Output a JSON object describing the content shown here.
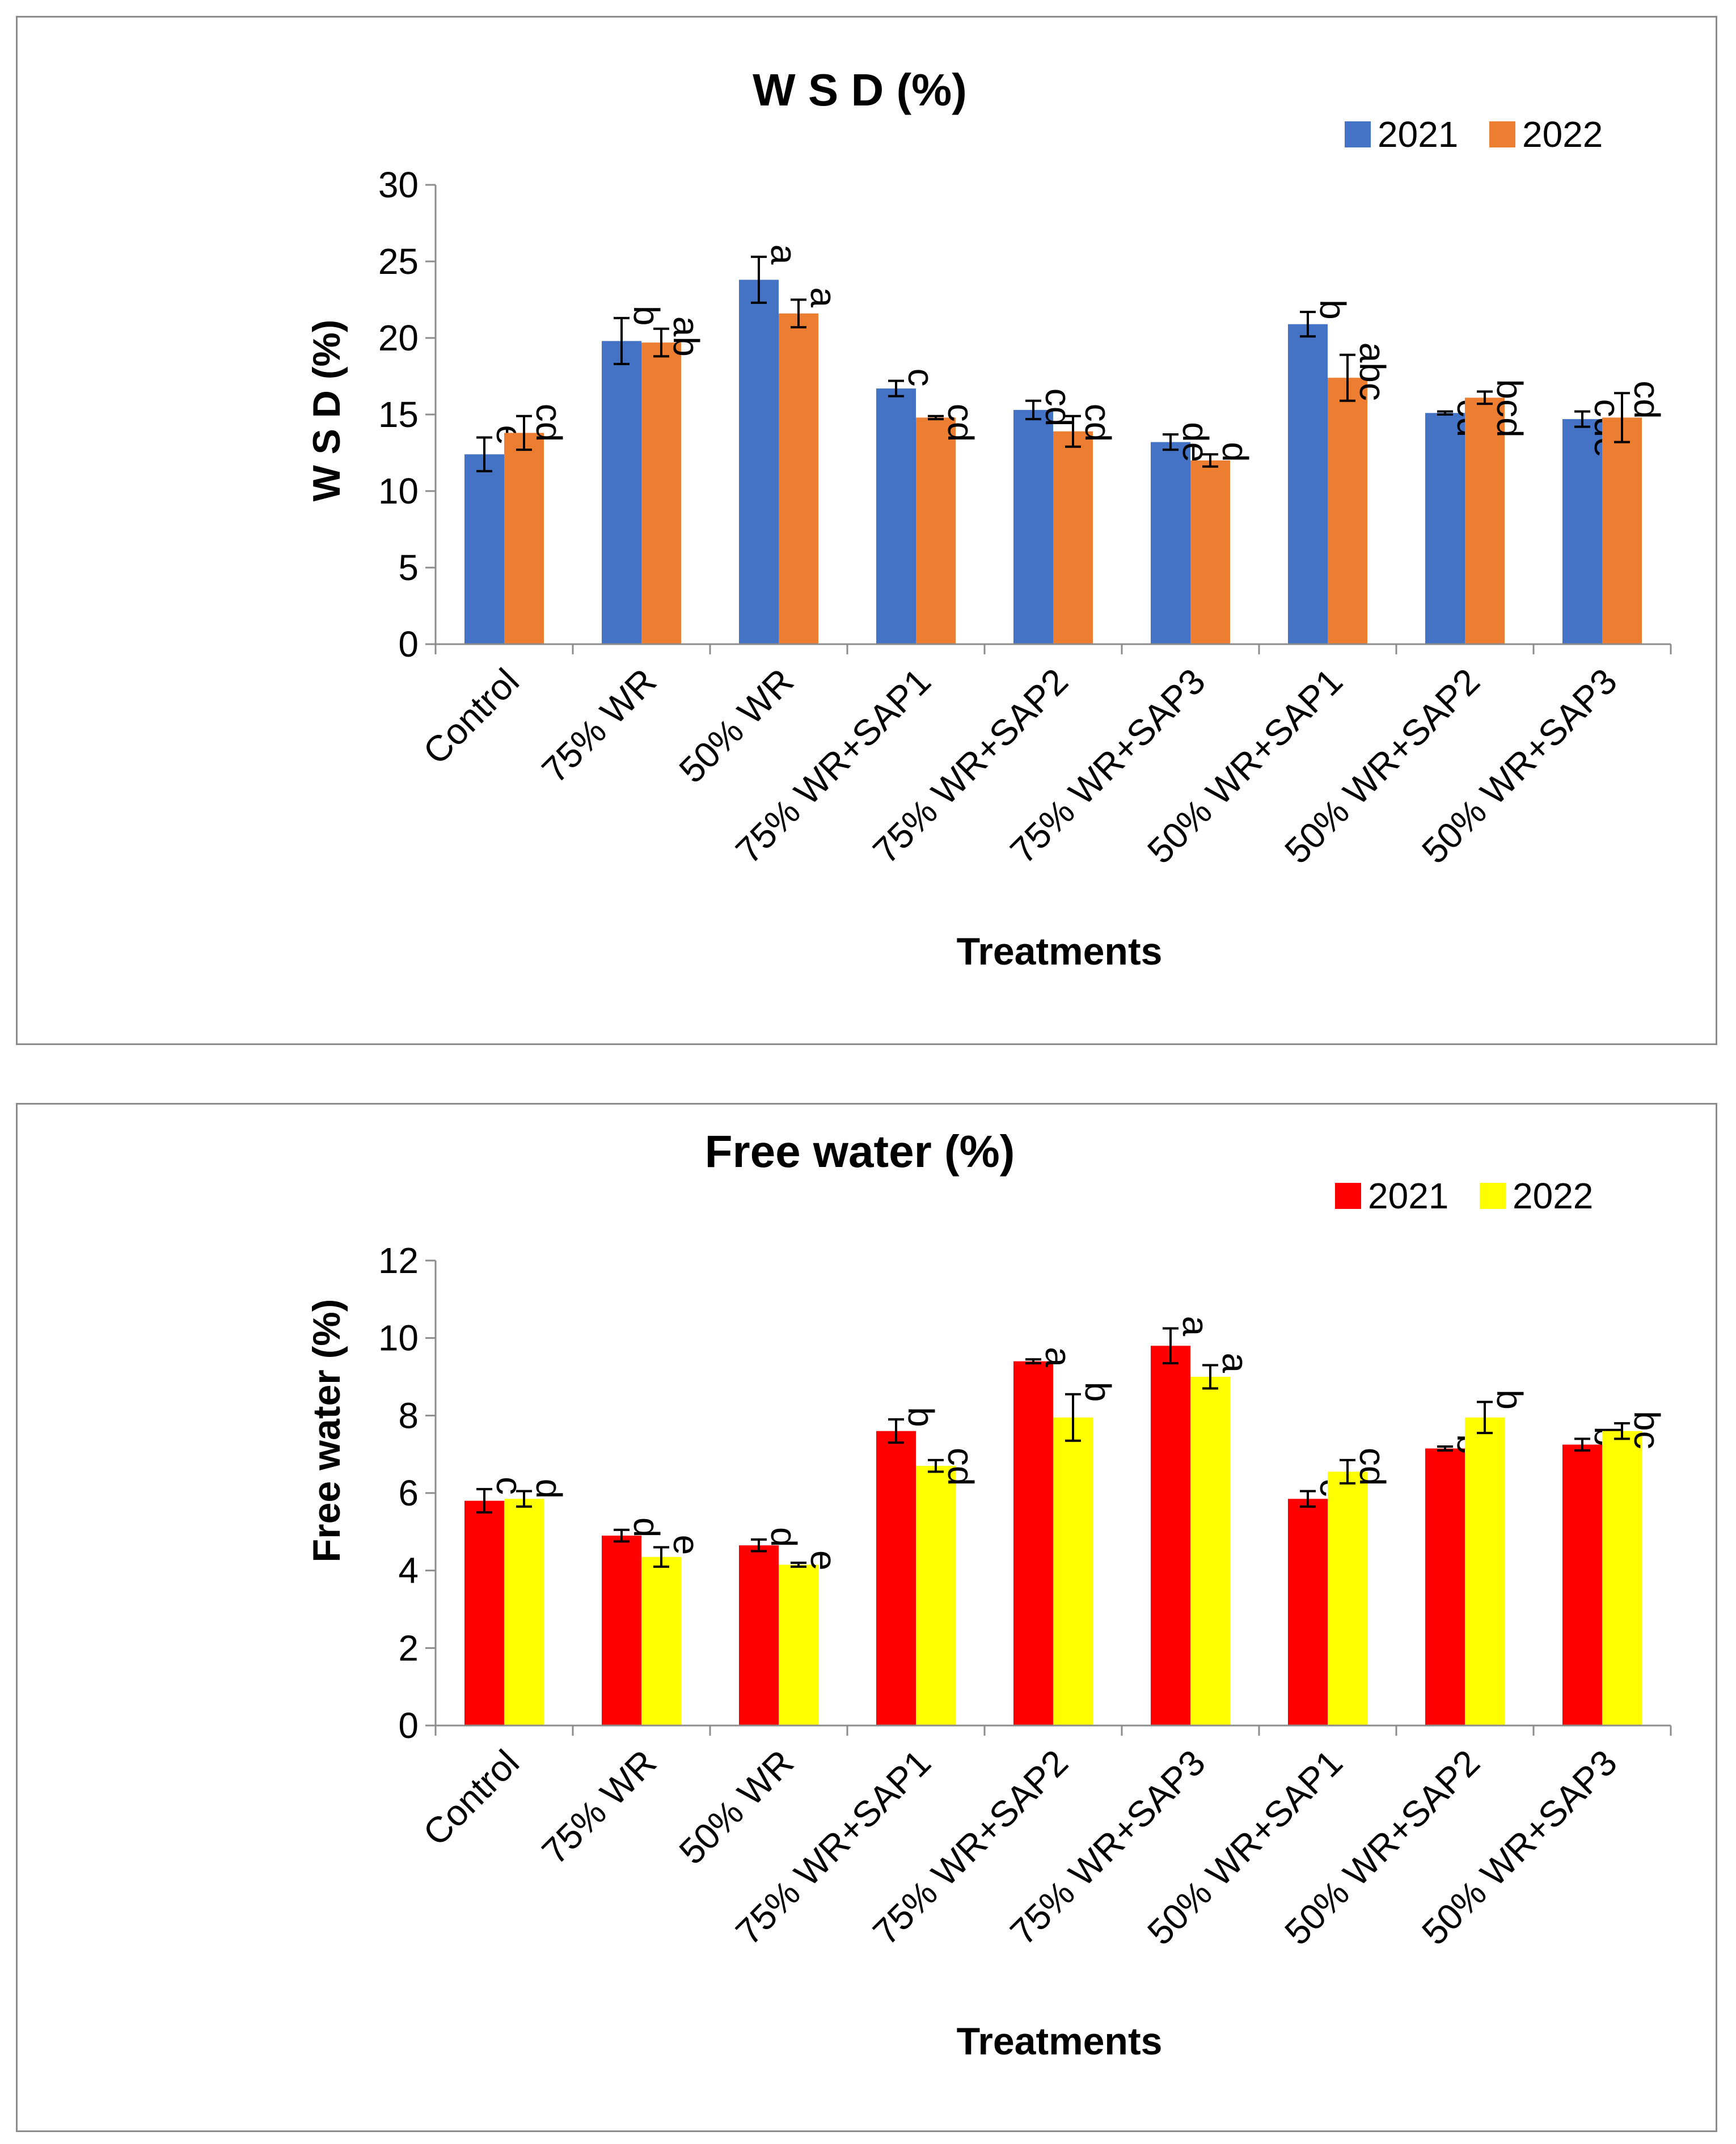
{
  "chart_data": [
    {
      "type": "bar",
      "title": "W S D (%)",
      "xlabel": "Treatments",
      "ylabel": "W S D (%)",
      "ylim": [
        0,
        30
      ],
      "yticks": [
        0,
        5,
        10,
        15,
        20,
        25,
        30
      ],
      "legend_position": "top-right",
      "categories": [
        "Control",
        "75% WR",
        "50% WR",
        "75% WR+SAP1",
        "75% WR+SAP2",
        "75% WR+SAP3",
        "50% WR+SAP1",
        "50% WR+SAP2",
        "50% WR+SAP3"
      ],
      "series": [
        {
          "name": "2021",
          "color": "#4472C4",
          "values": [
            12.4,
            19.8,
            23.8,
            16.7,
            15.3,
            13.2,
            20.9,
            15.1,
            14.7
          ],
          "errors": [
            1.1,
            1.5,
            1.5,
            0.5,
            0.6,
            0.5,
            0.8,
            0.1,
            0.5
          ],
          "labels": [
            "e",
            "b",
            "a",
            "c",
            "cd",
            "de",
            "b",
            "cd",
            "cde"
          ]
        },
        {
          "name": "2022",
          "color": "#ED7D31",
          "values": [
            13.8,
            19.7,
            21.6,
            14.8,
            13.9,
            12.0,
            17.4,
            16.1,
            14.8
          ],
          "errors": [
            1.1,
            0.9,
            0.9,
            0.1,
            1.0,
            0.4,
            1.5,
            0.4,
            1.6
          ],
          "labels": [
            "cd",
            "ab",
            "a",
            "cd",
            "cd",
            "d",
            "abc",
            "bcd",
            "cd"
          ]
        }
      ]
    },
    {
      "type": "bar",
      "title": "Free water (%)",
      "xlabel": "Treatments",
      "ylabel": "Free water (%)",
      "ylim": [
        0,
        12
      ],
      "yticks": [
        0,
        2,
        4,
        6,
        8,
        10,
        12
      ],
      "legend_position": "top-right",
      "categories": [
        "Control",
        "75% WR",
        "50% WR",
        "75% WR+SAP1",
        "75% WR+SAP2",
        "75% WR+SAP3",
        "50% WR+SAP1",
        "50% WR+SAP2",
        "50% WR+SAP3"
      ],
      "series": [
        {
          "name": "2021",
          "color": "#FF0000",
          "values": [
            5.8,
            4.9,
            4.65,
            7.6,
            9.4,
            9.8,
            5.85,
            7.15,
            7.25
          ],
          "errors": [
            0.3,
            0.15,
            0.15,
            0.3,
            0.05,
            0.45,
            0.2,
            0.05,
            0.15
          ],
          "labels": [
            "c",
            "d",
            "d",
            "b",
            "a",
            "a",
            "c",
            "b",
            "b"
          ]
        },
        {
          "name": "2022",
          "color": "#FFFF00",
          "values": [
            5.85,
            4.35,
            4.15,
            6.7,
            7.95,
            9.0,
            6.55,
            7.95,
            7.6
          ],
          "errors": [
            0.2,
            0.25,
            0.05,
            0.15,
            0.6,
            0.3,
            0.3,
            0.4,
            0.2
          ],
          "labels": [
            "d",
            "e",
            "e",
            "cd",
            "b",
            "a",
            "cd",
            "b",
            "bc"
          ]
        }
      ]
    }
  ]
}
